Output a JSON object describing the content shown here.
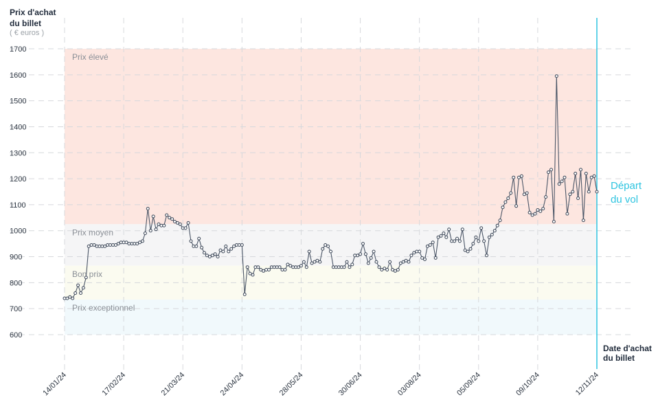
{
  "chart_data": {
    "type": "line",
    "ylabel": [
      "Prix d'achat",
      "du billet"
    ],
    "yunit": "( € euros )",
    "xlabel": [
      "Date d'achat",
      "du billet"
    ],
    "ylim": [
      600,
      1700
    ],
    "yticks": [
      600,
      700,
      800,
      900,
      1000,
      1100,
      1200,
      1300,
      1400,
      1500,
      1600,
      1700
    ],
    "xticks": [
      "14/01/24",
      "17/02/24",
      "21/03/24",
      "24/04/24",
      "28/05/24",
      "30/06/24",
      "03/08/24",
      "05/09/24",
      "09/10/24",
      "12/11/24"
    ],
    "zones": [
      {
        "label": "Prix élevé",
        "from": 1025,
        "to": 1700,
        "color": "#fde6e0"
      },
      {
        "label": "Prix moyen",
        "from": 865,
        "to": 1025,
        "color": "#f5f5f6"
      },
      {
        "label": "Bon prix",
        "from": 735,
        "to": 865,
        "color": "#fbfbf0"
      },
      {
        "label": "Prix exceptionnel",
        "from": 600,
        "to": 735,
        "color": "#f1f9fc"
      }
    ],
    "departure_label": [
      "Départ",
      "du vol"
    ],
    "series": [
      {
        "values": [
          740,
          740,
          745,
          740,
          760,
          790,
          760,
          780,
          820,
          940,
          945,
          945,
          940,
          940,
          940,
          940,
          945,
          945,
          945,
          945,
          950,
          955,
          955,
          955,
          950,
          950,
          950,
          950,
          955,
          960,
          990,
          1085,
          1000,
          1055,
          1005,
          1025,
          1020,
          1020,
          1060,
          1050,
          1045,
          1035,
          1030,
          1025,
          1010,
          1010,
          1030,
          960,
          940,
          940,
          970,
          935,
          915,
          905,
          900,
          905,
          910,
          900,
          925,
          920,
          940,
          920,
          930,
          940,
          945,
          945,
          945,
          755,
          860,
          835,
          830,
          860,
          860,
          850,
          845,
          850,
          850,
          860,
          860,
          860,
          860,
          850,
          850,
          870,
          865,
          860,
          860,
          860,
          865,
          880,
          860,
          920,
          875,
          880,
          885,
          880,
          930,
          945,
          940,
          920,
          860,
          860,
          860,
          860,
          860,
          880,
          860,
          870,
          905,
          905,
          910,
          950,
          910,
          875,
          895,
          920,
          880,
          860,
          850,
          855,
          850,
          880,
          850,
          845,
          850,
          875,
          880,
          885,
          880,
          905,
          915,
          920,
          920,
          895,
          890,
          940,
          945,
          955,
          895,
          975,
          980,
          990,
          975,
          1005,
          960,
          960,
          970,
          960,
          1005,
          925,
          920,
          930,
          950,
          975,
          960,
          1010,
          960,
          905,
          975,
          985,
          1000,
          1020,
          1040,
          1090,
          1110,
          1125,
          1145,
          1205,
          1095,
          1205,
          1210,
          1140,
          1145,
          1070,
          1060,
          1065,
          1080,
          1075,
          1085,
          1130,
          1225,
          1235,
          1035,
          1595,
          1180,
          1190,
          1205,
          1065,
          1140,
          1150,
          1220,
          1125,
          1235,
          1040,
          1220,
          1150,
          1205,
          1210,
          1150
        ]
      }
    ]
  }
}
